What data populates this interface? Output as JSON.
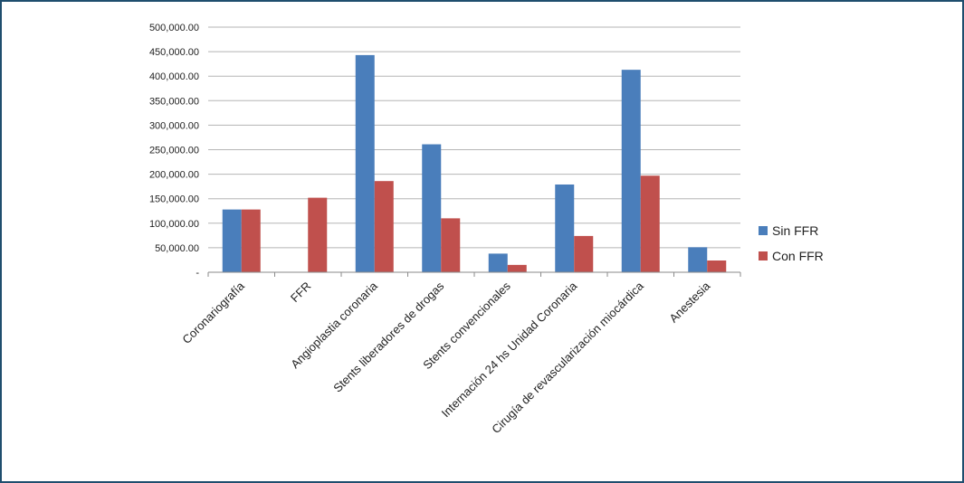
{
  "chart_data": {
    "type": "bar",
    "categories": [
      "Coronariografía",
      "FFR",
      "Angioplastia coronaria",
      "Stents liberadores de drogas",
      "Stents convencionales",
      "Internación 24 hs Unidad Coronaria",
      "Cirugía de revascularización miocárdica",
      "Anestesia"
    ],
    "series": [
      {
        "name": "Sin FFR",
        "color": "#4a7ebb",
        "values": [
          128000,
          0,
          443000,
          261000,
          38000,
          179000,
          413000,
          51000
        ]
      },
      {
        "name": "Con FFR",
        "color": "#c0504d",
        "values": [
          128000,
          152000,
          186000,
          110000,
          15000,
          74000,
          197000,
          24000
        ]
      }
    ],
    "ylim": [
      0,
      500000
    ],
    "yticks": [
      0,
      50000,
      100000,
      150000,
      200000,
      250000,
      300000,
      350000,
      400000,
      450000,
      500000
    ],
    "ytick_labels": [
      "-",
      "50,000.00",
      "100,000.00",
      "150,000.00",
      "200,000.00",
      "250,000.00",
      "300,000.00",
      "350,000.00",
      "400,000.00",
      "450,000.00",
      "500,000.00"
    ],
    "grid": true,
    "legend": "right",
    "title": "",
    "xlabel": "",
    "ylabel": ""
  }
}
